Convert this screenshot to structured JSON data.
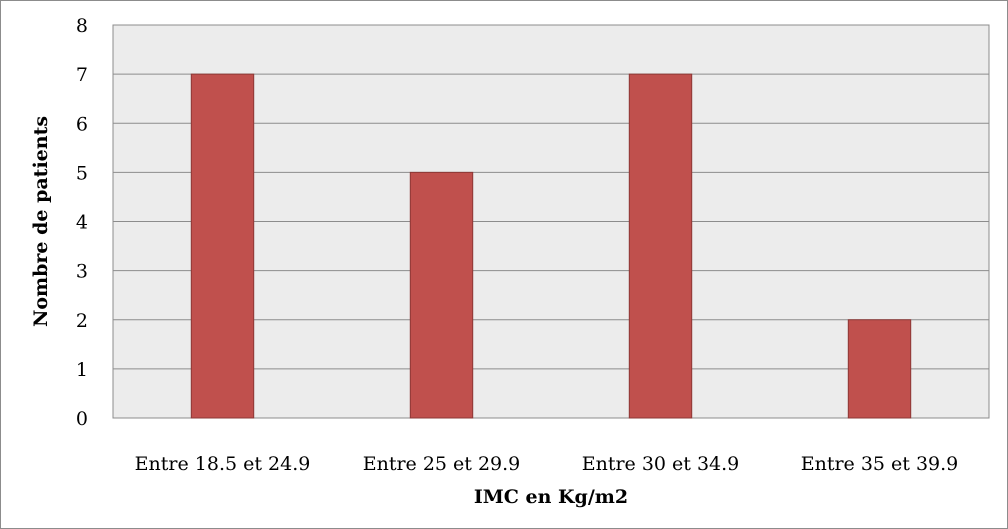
{
  "chart_data": {
    "type": "bar",
    "categories": [
      "Entre 18.5 et 24.9",
      "Entre 25 et 29.9",
      "Entre 30 et 34.9",
      "Entre 35 et 39.9"
    ],
    "values": [
      7,
      5,
      7,
      2
    ],
    "xlabel": "IMC en Kg/m2",
    "ylabel": "Nombre de patients",
    "ylim": [
      0,
      8
    ],
    "yticks": [
      0,
      1,
      2,
      3,
      4,
      5,
      6,
      7,
      8
    ],
    "grid": true,
    "legend": "none",
    "colors": {
      "bar_fill": "#c0504d",
      "bar_stroke": "#8c3836",
      "plot_background": "#ececec",
      "gridline": "#8c8c8c"
    }
  }
}
